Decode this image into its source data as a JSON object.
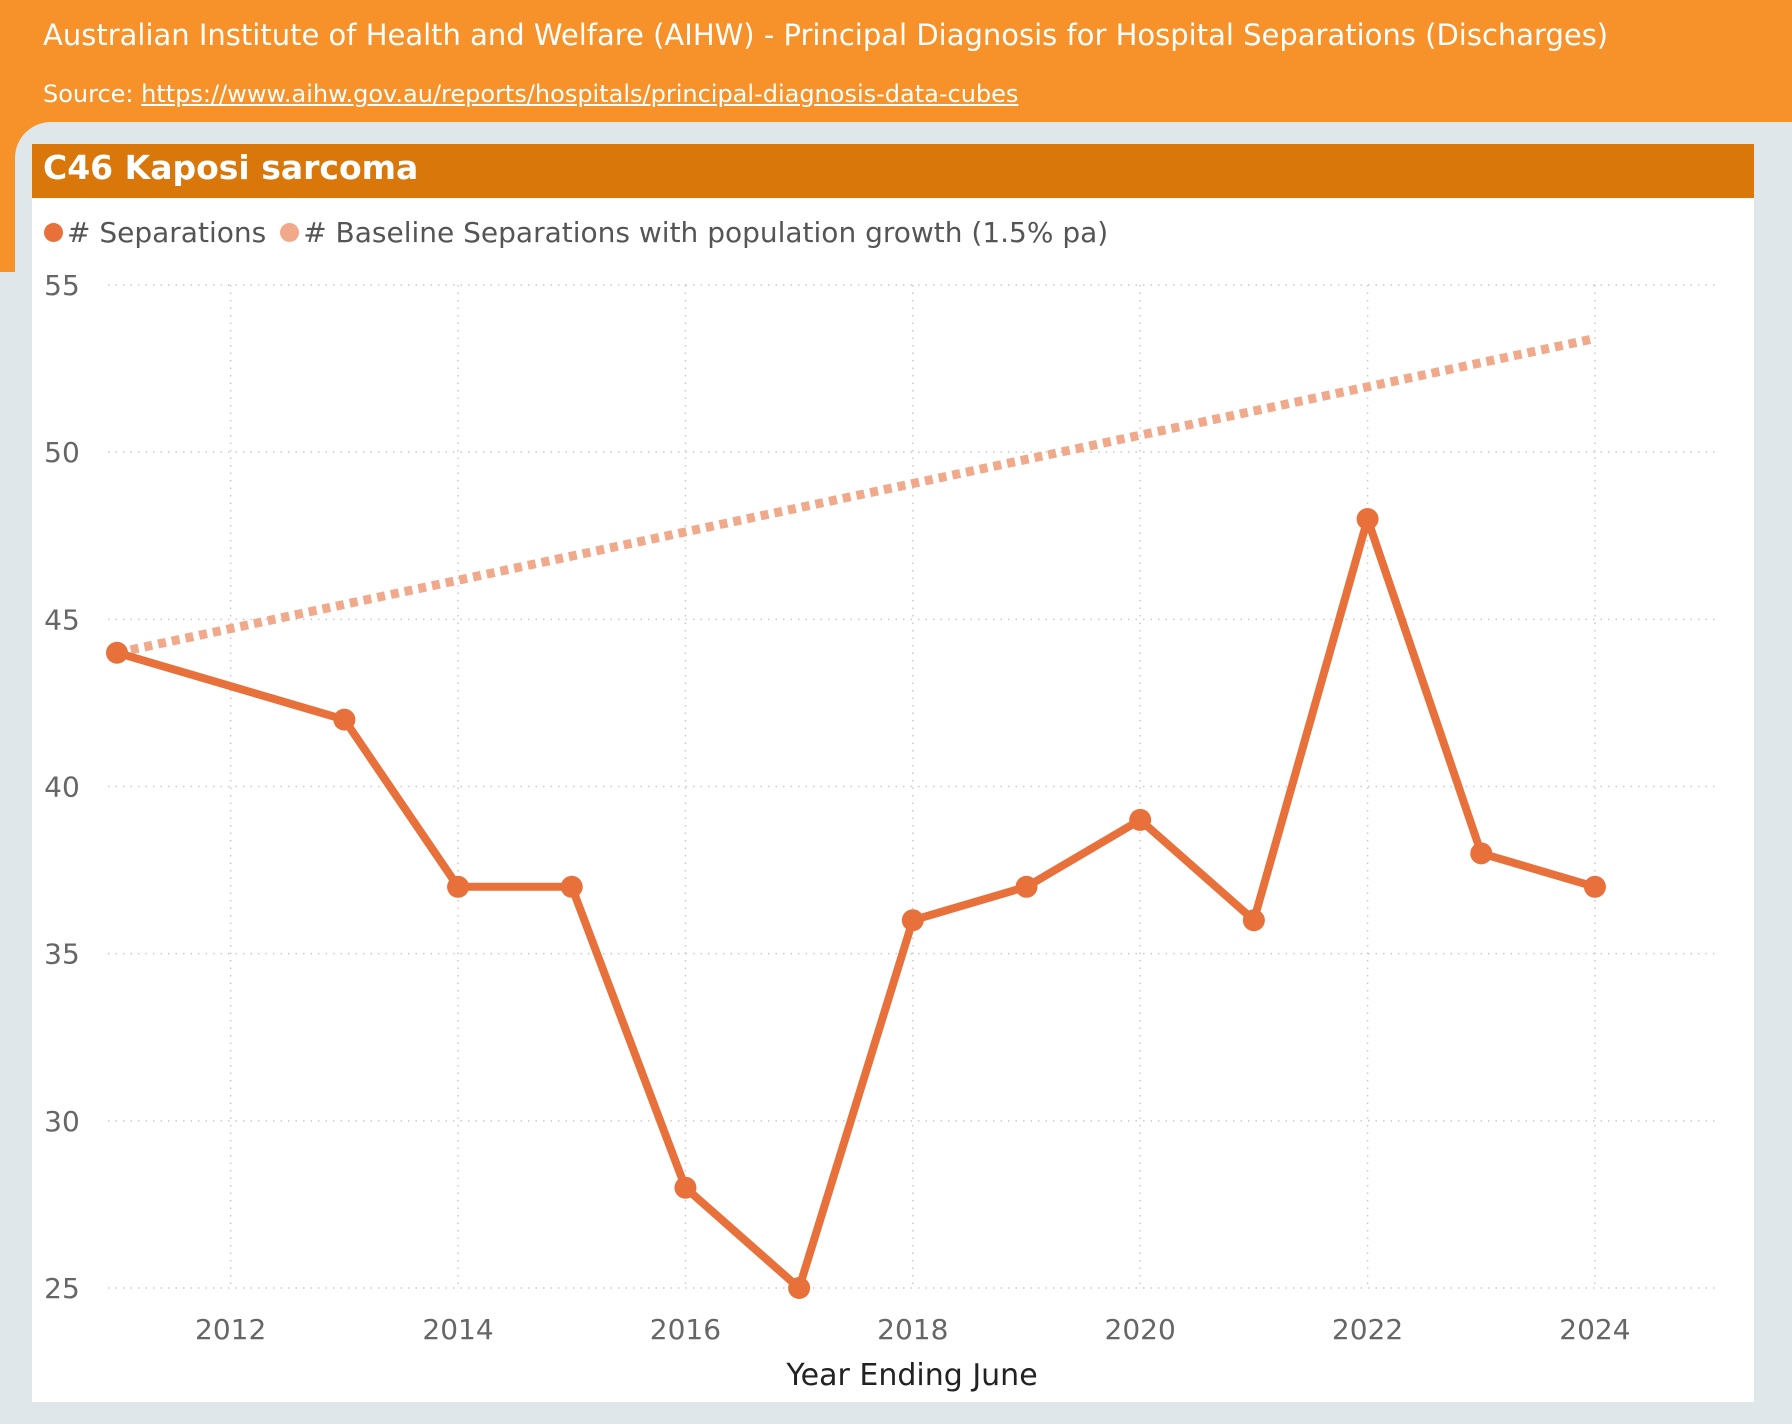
{
  "header": {
    "title": "Australian Institute of Health and Welfare (AIHW) - Principal Diagnosis for Hospital Separations (Discharges)",
    "source_label": "Source:",
    "source_link": "https://www.aihw.gov.au/reports/hospitals/principal-diagnosis-data-cubes"
  },
  "colors": {
    "header_bg": "#f7922a",
    "title_bar": "#d9770b",
    "series_main": "#e8703a",
    "series_baseline": "#f0a98b"
  },
  "chart_data": {
    "type": "line",
    "title": "C46 Kaposi sarcoma",
    "xlabel": "Year Ending June",
    "ylabel": "",
    "xlim": [
      2011,
      2025.1
    ],
    "ylim": [
      25,
      55
    ],
    "x_ticks": [
      "2012",
      "2014",
      "2016",
      "2018",
      "2020",
      "2022",
      "2024"
    ],
    "y_ticks": [
      "25",
      "30",
      "35",
      "40",
      "45",
      "50",
      "55"
    ],
    "grid": true,
    "legend_position": "top-left",
    "series": [
      {
        "name": "# Separations",
        "style": "solid",
        "markers": true,
        "x": [
          2011,
          2013,
          2014,
          2015,
          2016,
          2017,
          2018,
          2019,
          2020,
          2021,
          2022,
          2023,
          2024
        ],
        "values": [
          44,
          42,
          37,
          37,
          28,
          25,
          36,
          37,
          39,
          36,
          48,
          38,
          37
        ]
      },
      {
        "name": "# Baseline Separations with population growth (1.5% pa)",
        "style": "dotted",
        "markers": false,
        "x": [
          2011,
          2024
        ],
        "values": [
          44,
          53.4
        ]
      }
    ]
  }
}
